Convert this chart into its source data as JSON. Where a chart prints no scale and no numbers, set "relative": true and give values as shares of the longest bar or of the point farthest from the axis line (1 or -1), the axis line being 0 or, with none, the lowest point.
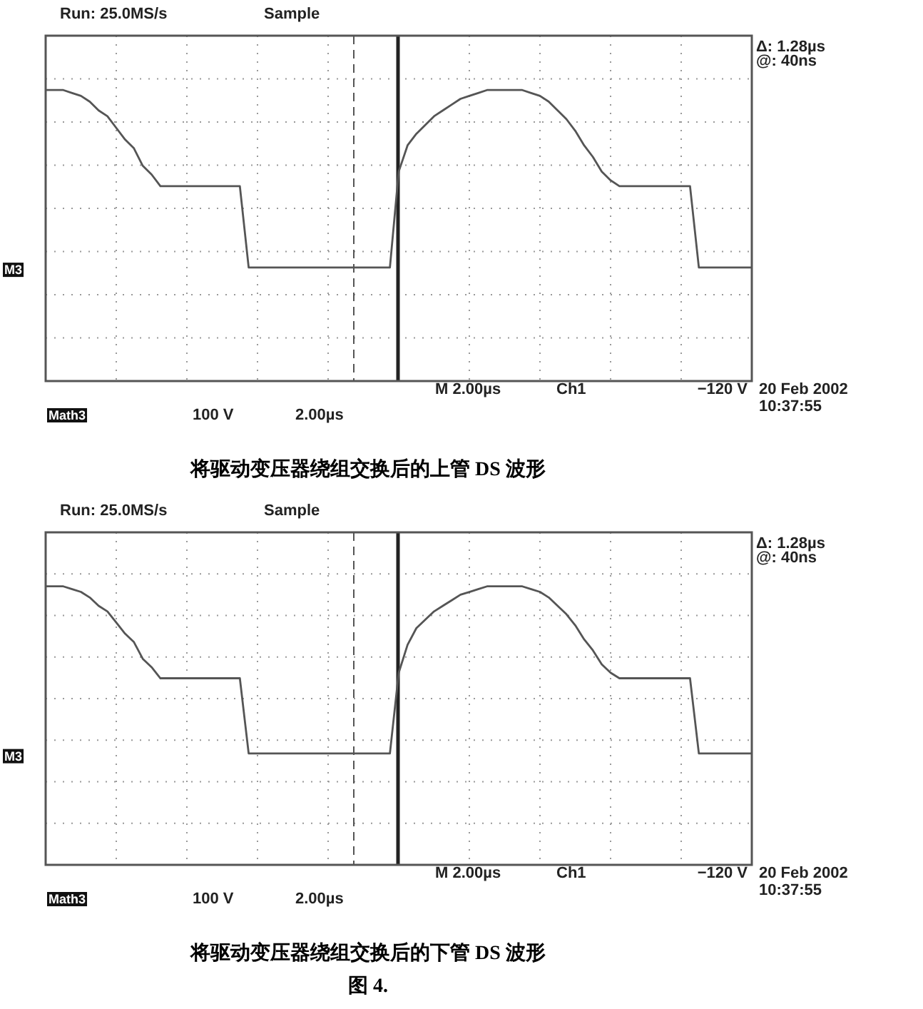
{
  "chart_data": [
    {
      "type": "line",
      "title": "将驱动变压器绕组交换后的上管 DS 波形",
      "relative": true,
      "grid": true,
      "line_style": "solid",
      "color": "#555555",
      "categories": [
        null,
        null,
        null,
        null,
        null,
        null,
        null,
        null,
        null,
        null,
        null,
        null,
        null,
        null,
        null,
        null,
        null,
        null,
        null,
        null,
        null,
        null,
        null,
        null,
        null,
        null,
        null,
        null,
        null,
        null,
        null,
        null,
        null,
        null,
        null,
        null,
        null,
        null,
        null,
        null,
        null,
        null,
        null,
        null,
        null,
        null,
        null,
        null,
        null,
        null,
        null,
        null,
        null,
        null,
        null,
        null,
        null,
        null,
        null,
        null,
        null,
        null,
        null,
        null,
        null,
        null,
        null,
        null,
        null,
        null,
        null,
        null,
        null,
        null,
        null,
        null,
        null,
        null,
        null,
        null,
        null
      ],
      "values": [
        1.0,
        1.0,
        1.0,
        0.99,
        0.98,
        0.96,
        0.93,
        0.91,
        0.87,
        0.83,
        0.8,
        0.74,
        0.71,
        0.67,
        0.67,
        0.67,
        0.67,
        0.67,
        0.67,
        0.67,
        0.67,
        0.67,
        0.67,
        0.39,
        0.39,
        0.39,
        0.39,
        0.39,
        0.39,
        0.39,
        0.39,
        0.39,
        0.39,
        0.39,
        0.39,
        0.39,
        0.39,
        0.39,
        0.39,
        0.39,
        0.72,
        0.81,
        0.85,
        0.88,
        0.91,
        0.93,
        0.95,
        0.97,
        0.98,
        0.99,
        1.0,
        1.0,
        1.0,
        1.0,
        1.0,
        0.99,
        0.98,
        0.96,
        0.93,
        0.9,
        0.86,
        0.81,
        0.77,
        0.72,
        0.69,
        0.67,
        0.67,
        0.67,
        0.67,
        0.67,
        0.67,
        0.67,
        0.67,
        0.67,
        0.39,
        0.39,
        0.39,
        0.39,
        0.39,
        0.39,
        0.39
      ],
      "annotations": [
        "Run: 25.0MS/s",
        "Sample",
        "Δ: 1.28µs",
        "@: 40ns",
        "M3",
        "M 2.00µs",
        "Ch1",
        "−120 V",
        "20 Feb 2002",
        "10:37:55",
        "Math3",
        "100 V",
        "2.00µs"
      ]
    },
    {
      "type": "line",
      "title": "将驱动变压器绕组交换后的下管 DS 波形",
      "relative": true,
      "grid": true,
      "line_style": "solid",
      "color": "#555555",
      "categories": [
        null,
        null,
        null,
        null,
        null,
        null,
        null,
        null,
        null,
        null,
        null,
        null,
        null,
        null,
        null,
        null,
        null,
        null,
        null,
        null,
        null,
        null,
        null,
        null,
        null,
        null,
        null,
        null,
        null,
        null,
        null,
        null,
        null,
        null,
        null,
        null,
        null,
        null,
        null,
        null,
        null,
        null,
        null,
        null,
        null,
        null,
        null,
        null,
        null,
        null,
        null,
        null,
        null,
        null,
        null,
        null,
        null,
        null,
        null,
        null,
        null,
        null,
        null,
        null,
        null,
        null,
        null,
        null,
        null,
        null,
        null,
        null,
        null,
        null,
        null,
        null,
        null,
        null,
        null,
        null,
        null
      ],
      "values": [
        1.0,
        1.0,
        1.0,
        0.99,
        0.98,
        0.96,
        0.93,
        0.91,
        0.87,
        0.83,
        0.8,
        0.74,
        0.71,
        0.67,
        0.67,
        0.67,
        0.67,
        0.67,
        0.67,
        0.67,
        0.67,
        0.67,
        0.67,
        0.4,
        0.4,
        0.4,
        0.4,
        0.4,
        0.4,
        0.4,
        0.4,
        0.4,
        0.4,
        0.4,
        0.4,
        0.4,
        0.4,
        0.4,
        0.4,
        0.4,
        0.69,
        0.79,
        0.85,
        0.88,
        0.91,
        0.93,
        0.95,
        0.97,
        0.98,
        0.99,
        1.0,
        1.0,
        1.0,
        1.0,
        1.0,
        0.99,
        0.98,
        0.96,
        0.93,
        0.9,
        0.86,
        0.81,
        0.77,
        0.72,
        0.69,
        0.67,
        0.67,
        0.67,
        0.67,
        0.67,
        0.67,
        0.67,
        0.67,
        0.67,
        0.4,
        0.4,
        0.4,
        0.4,
        0.4,
        0.4,
        0.4
      ],
      "annotations": [
        "Run: 25.0MS/s",
        "Sample",
        "Δ: 1.28µs",
        "@: 40ns",
        "M3",
        "M 2.00µs",
        "Ch1",
        "−120 V",
        "20 Feb 2002",
        "10:37:55",
        "Math3",
        "100 V",
        "2.00µs",
        "图 4."
      ]
    }
  ]
}
